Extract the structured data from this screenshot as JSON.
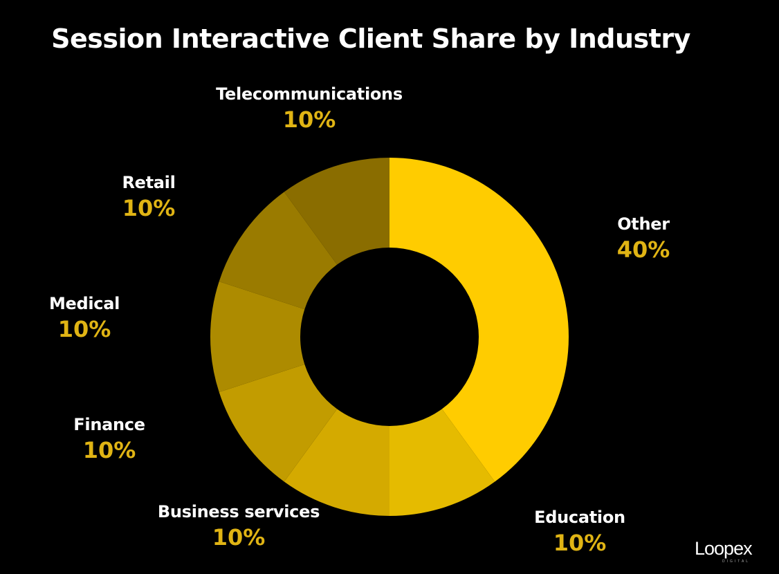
{
  "chart_data": {
    "type": "pie",
    "title": "Session Interactive Client Share by Industry",
    "value_suffix": "%",
    "categories": [
      "Other",
      "Education",
      "Business services",
      "Finance",
      "Medical",
      "Retail",
      "Telecommunications"
    ],
    "values": [
      40,
      10,
      10,
      10,
      10,
      10,
      10
    ],
    "colors": [
      "#ffcc00",
      "#e5bb00",
      "#d4aa00",
      "#c29c00",
      "#ad8b00",
      "#9a7b00",
      "#8a6d00"
    ],
    "label_color": "#e0b414",
    "donut": true
  },
  "logo": {
    "text": "Loopex",
    "subtext": "DIGITAL"
  }
}
